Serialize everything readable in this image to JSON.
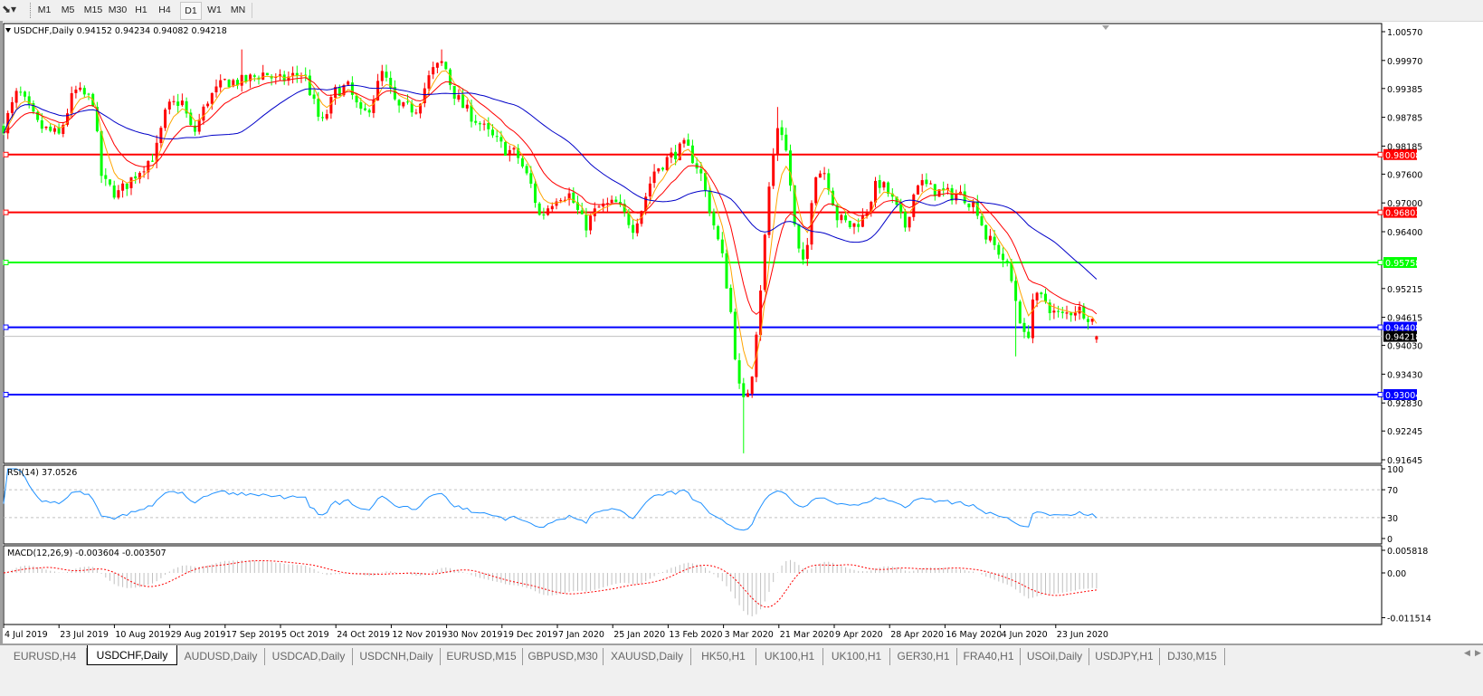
{
  "toolbar": {
    "drawing_tool_icon": "line-tools-icon",
    "timeframes": [
      "M1",
      "M5",
      "M15",
      "M30",
      "H1",
      "H4",
      "D1",
      "W1",
      "MN"
    ],
    "active_timeframe": "D1"
  },
  "chart_header": {
    "label": "USDCHF,Daily  0.94152 0.94234 0.94082 0.94218"
  },
  "rsi": {
    "label": "RSI(14) 37.0526",
    "axis": [
      "100",
      "70",
      "30",
      "0"
    ]
  },
  "macd": {
    "label": "MACD(12,26,9) -0.003604 -0.003507",
    "axis": [
      "0.005818",
      "0.00",
      "-0.011514"
    ]
  },
  "tabs": [
    "EURUSD,H4",
    "USDCHF,Daily",
    "AUDUSD,Daily",
    "USDCAD,Daily",
    "USDCNH,Daily",
    "EURUSD,M15",
    "GBPUSD,M30",
    "XAUUSD,Daily",
    "HK50,H1",
    "UK100,H1",
    "UK100,H1",
    "GER30,H1",
    "FRA40,H1",
    "USOil,Daily",
    "USDJPY,H1",
    "DJ30,M15"
  ],
  "active_tab": "USDCHF,Daily",
  "chart_data": {
    "type": "candlestick",
    "symbol": "USDCHF",
    "timeframe": "Daily",
    "last_bar": {
      "open": 0.94152,
      "high": 0.94234,
      "low": 0.94082,
      "close": 0.94218
    },
    "price_axis": [
      "1.00570",
      "0.99970",
      "0.99385",
      "0.98785",
      "0.98185",
      "0.97600",
      "0.97000",
      "0.96400",
      "0.95215",
      "0.94615",
      "0.94030",
      "0.93430",
      "0.92830",
      "0.92245",
      "0.91645"
    ],
    "ylim": [
      0.91645,
      1.0057
    ],
    "x_ticks": [
      "4 Jul 2019",
      "23 Jul 2019",
      "10 Aug 2019",
      "29 Aug 2019",
      "17 Sep 2019",
      "5 Oct 2019",
      "24 Oct 2019",
      "12 Nov 2019",
      "30 Nov 2019",
      "19 Dec 2019",
      "7 Jan 2020",
      "25 Jan 2020",
      "13 Feb 2020",
      "3 Mar 2020",
      "21 Mar 2020",
      "9 Apr 2020",
      "28 Apr 2020",
      "16 May 2020",
      "4 Jun 2020",
      "23 Jun 2020"
    ],
    "x_tick_dates": [
      "2019-07-04",
      "2019-07-23",
      "2019-08-10",
      "2019-08-29",
      "2019-09-17",
      "2019-10-05",
      "2019-10-24",
      "2019-11-12",
      "2019-11-30",
      "2019-12-19",
      "2020-01-07",
      "2020-01-25",
      "2020-02-13",
      "2020-03-03",
      "2020-03-21",
      "2020-04-09",
      "2020-04-28",
      "2020-05-16",
      "2020-06-04",
      "2020-06-23"
    ],
    "closes": [
      [
        "2019-07-04",
        0.9859
      ],
      [
        "2019-07-09",
        0.9934
      ],
      [
        "2019-07-16",
        0.986
      ],
      [
        "2019-07-23",
        0.984
      ],
      [
        "2019-07-28",
        0.9934
      ],
      [
        "2019-08-03",
        0.9915
      ],
      [
        "2019-08-06",
        0.9746
      ],
      [
        "2019-08-11",
        0.9717
      ],
      [
        "2019-08-18",
        0.9765
      ],
      [
        "2019-08-24",
        0.9802
      ],
      [
        "2019-08-28",
        0.9897
      ],
      [
        "2019-09-02",
        0.9915
      ],
      [
        "2019-09-06",
        0.984
      ],
      [
        "2019-09-11",
        0.9915
      ],
      [
        "2019-09-17",
        0.9953
      ],
      [
        "2019-09-23",
        0.9953
      ],
      [
        "2019-09-30",
        0.9972
      ],
      [
        "2019-10-04",
        0.9953
      ],
      [
        "2019-10-08",
        0.9962
      ],
      [
        "2019-10-13",
        0.9972
      ],
      [
        "2019-10-16",
        0.9915
      ],
      [
        "2019-10-19",
        0.986
      ],
      [
        "2019-10-24",
        0.9934
      ],
      [
        "2019-10-28",
        0.9943
      ],
      [
        "2019-11-02",
        0.9878
      ],
      [
        "2019-11-05",
        0.9906
      ],
      [
        "2019-11-09",
        0.9972
      ],
      [
        "2019-11-14",
        0.9897
      ],
      [
        "2019-11-20",
        0.9897
      ],
      [
        "2019-11-25",
        0.9972
      ],
      [
        "2019-11-29",
        0.9995
      ],
      [
        "2019-12-02",
        0.9934
      ],
      [
        "2019-12-06",
        0.9897
      ],
      [
        "2019-12-11",
        0.9868
      ],
      [
        "2019-12-15",
        0.984
      ],
      [
        "2019-12-20",
        0.9812
      ],
      [
        "2019-12-24",
        0.9802
      ],
      [
        "2019-12-29",
        0.9736
      ],
      [
        "2020-01-01",
        0.967
      ],
      [
        "2020-01-07",
        0.9717
      ],
      [
        "2020-01-11",
        0.9717
      ],
      [
        "2020-01-16",
        0.965
      ],
      [
        "2020-01-20",
        0.9689
      ],
      [
        "2020-01-26",
        0.9699
      ],
      [
        "2020-02-01",
        0.965
      ],
      [
        "2020-02-04",
        0.969
      ],
      [
        "2020-02-08",
        0.9765
      ],
      [
        "2020-02-13",
        0.9793
      ],
      [
        "2020-02-19",
        0.982
      ],
      [
        "2020-02-24",
        0.9765
      ],
      [
        "2020-02-28",
        0.967
      ],
      [
        "2020-03-03",
        0.9576
      ],
      [
        "2020-03-06",
        0.9444
      ],
      [
        "2020-03-07",
        0.9368
      ],
      [
        "2020-03-09",
        0.9274
      ],
      [
        "2020-03-12",
        0.933
      ],
      [
        "2020-03-15",
        0.952
      ],
      [
        "2020-03-18",
        0.9746
      ],
      [
        "2020-03-21",
        0.9878
      ],
      [
        "2020-03-24",
        0.9793
      ],
      [
        "2020-03-27",
        0.9614
      ],
      [
        "2020-03-30",
        0.9557
      ],
      [
        "2020-04-02",
        0.9765
      ],
      [
        "2020-04-06",
        0.9765
      ],
      [
        "2020-04-10",
        0.967
      ],
      [
        "2020-04-15",
        0.965
      ],
      [
        "2020-04-19",
        0.967
      ],
      [
        "2020-04-24",
        0.9746
      ],
      [
        "2020-04-28",
        0.9717
      ],
      [
        "2020-05-03",
        0.965
      ],
      [
        "2020-05-07",
        0.9746
      ],
      [
        "2020-05-12",
        0.9727
      ],
      [
        "2020-05-18",
        0.9717
      ],
      [
        "2020-05-22",
        0.9717
      ],
      [
        "2020-05-27",
        0.9689
      ],
      [
        "2020-05-30",
        0.963
      ],
      [
        "2020-06-04",
        0.9595
      ],
      [
        "2020-06-07",
        0.9557
      ],
      [
        "2020-06-10",
        0.948
      ],
      [
        "2020-06-13",
        0.9397
      ],
      [
        "2020-06-15",
        0.95
      ],
      [
        "2020-06-19",
        0.95
      ],
      [
        "2020-06-22",
        0.9472
      ],
      [
        "2020-06-25",
        0.9463
      ],
      [
        "2020-06-30",
        0.948
      ],
      [
        "2020-07-03",
        0.9472
      ],
      [
        "2020-07-06",
        0.9453
      ],
      [
        "2020-07-07",
        0.94218
      ]
    ],
    "extreme_lows": [
      [
        "2020-03-09",
        0.9178
      ],
      [
        "2020-06-10",
        0.938
      ]
    ],
    "extreme_highs": [
      [
        "2019-11-29",
        1.002
      ],
      [
        "2019-09-23",
        1.002
      ],
      [
        "2020-03-21",
        0.99
      ]
    ],
    "indicators": {
      "ma_fast_color": "#ffa500",
      "ma_mid_color": "#ff0000",
      "ma_slow_color": "#0000c8",
      "rsi_color": "#1e90ff",
      "rsi_levels": [
        70,
        30
      ],
      "macd_histogram_color": "#c0c0c0",
      "macd_signal_color": "#ff0000"
    },
    "candle_colors": {
      "up": "#ff0000",
      "down": "#00ff00"
    },
    "horizontal_lines": [
      {
        "price": "0.98008",
        "color": "#ff0000"
      },
      {
        "price": "0.96803",
        "color": "#ff0000"
      },
      {
        "price": "0.95758",
        "color": "#00ff00"
      },
      {
        "price": "0.94408",
        "color": "#0000ff"
      },
      {
        "price": "0.93004",
        "color": "#0000ff"
      }
    ],
    "current_price": "0.94218"
  }
}
